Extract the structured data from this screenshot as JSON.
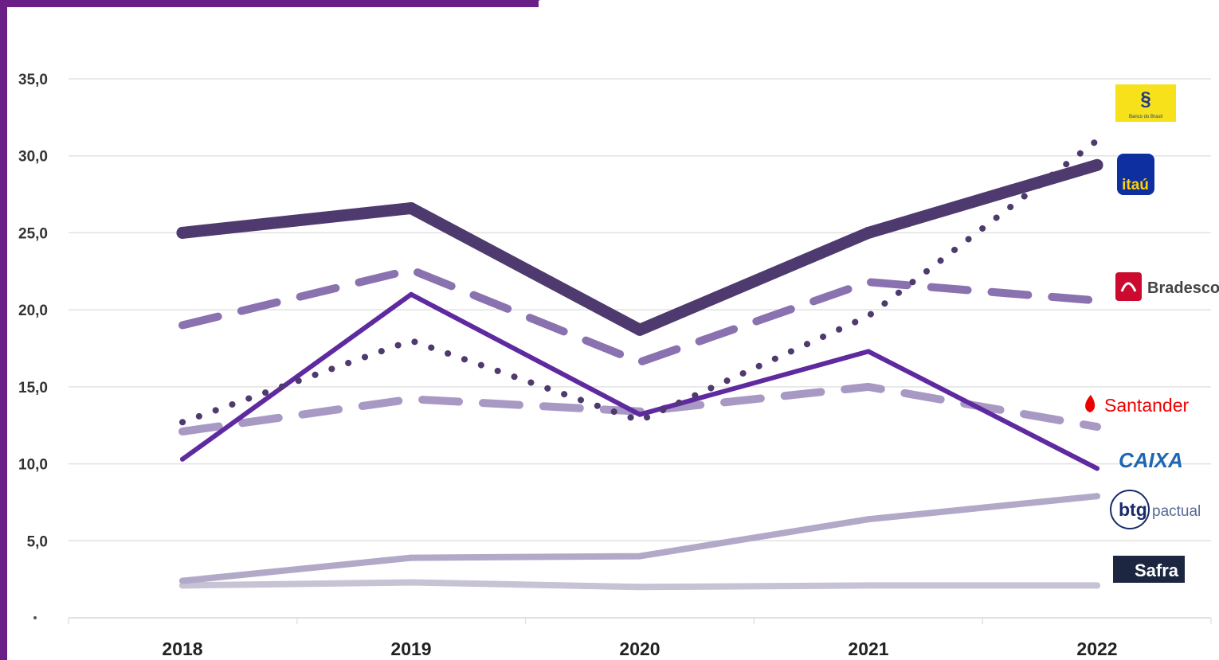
{
  "chart_data": {
    "type": "line",
    "title": "",
    "xlabel": "",
    "ylabel": "",
    "x": [
      "2018",
      "2019",
      "2020",
      "2021",
      "2022"
    ],
    "ylim": [
      0,
      35
    ],
    "yticks": [
      "",
      "5,0",
      "10,0",
      "15,0",
      "20,0",
      "25,0",
      "30,0",
      "35,0"
    ],
    "grid": true,
    "legend": "right, as bank logos at line ends",
    "series": [
      {
        "name": "Itaú",
        "values": [
          25.0,
          26.6,
          18.7,
          25.0,
          29.4
        ],
        "color": "#4e3a6e",
        "style": "solid-thick"
      },
      {
        "name": "Banco do Brasil",
        "values": [
          12.7,
          18.0,
          12.8,
          19.6,
          31.0
        ],
        "color": "#4e3a6e",
        "style": "dotted"
      },
      {
        "name": "Bradesco",
        "values": [
          19.0,
          22.6,
          16.6,
          21.8,
          20.6
        ],
        "color": "#8a72b0",
        "style": "dashed"
      },
      {
        "name": "Santander",
        "values": [
          12.1,
          14.2,
          13.4,
          15.0,
          12.4
        ],
        "color": "#a898c4",
        "style": "dashed"
      },
      {
        "name": "CAIXA",
        "values": [
          10.3,
          21.0,
          13.2,
          17.3,
          9.7
        ],
        "color": "#5f2aa0",
        "style": "solid"
      },
      {
        "name": "BTG Pactual",
        "values": [
          2.4,
          3.9,
          4.0,
          6.4,
          7.9
        ],
        "color": "#b2a9c8",
        "style": "solid-medium"
      },
      {
        "name": "Safra",
        "values": [
          2.1,
          2.3,
          2.0,
          2.1,
          2.1
        ],
        "color": "#c7c2d4",
        "style": "solid-medium"
      }
    ]
  },
  "logos": {
    "bb": {
      "text": "Banco do Brasil",
      "color": "#f7e11a"
    },
    "itau": {
      "text": "itaú",
      "color": "#0d2fa0"
    },
    "bradesco": {
      "text": "Bradesco",
      "color": "#cc092f"
    },
    "santander": {
      "text": "Santander",
      "color": "#ec0000"
    },
    "caixa": {
      "text": "CAIXA",
      "color": "#1f66b1"
    },
    "btg": {
      "text_main": "btg",
      "text_sub": "pactual",
      "color": "#1a2b6b"
    },
    "safra": {
      "text": "Safra",
      "color": "#1c2640"
    }
  }
}
